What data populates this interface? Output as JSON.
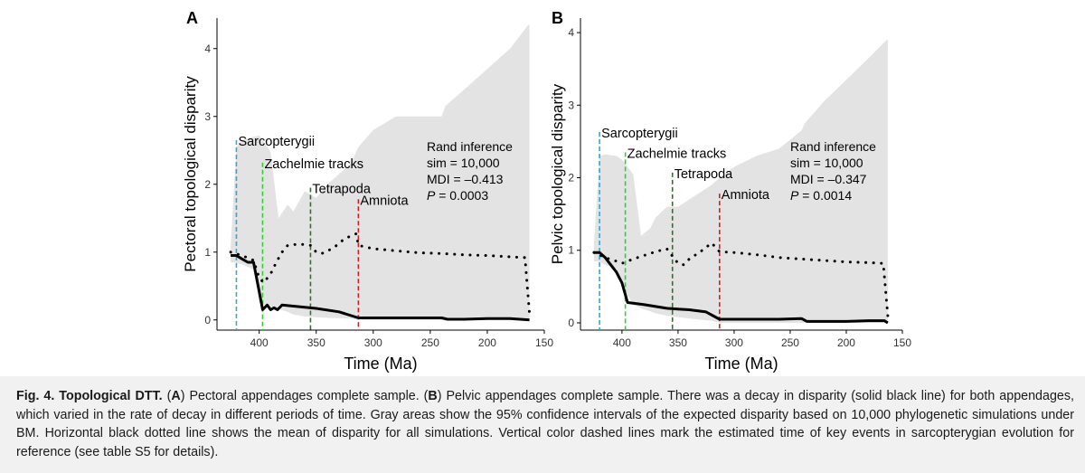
{
  "chart_data": [
    {
      "type": "line",
      "panel_label": "A",
      "ylabel": "Pectoral topological disparity",
      "xlabel": "Time (Ma)",
      "xlim": [
        437,
        150
      ],
      "ylim": [
        -0.15,
        4.45
      ],
      "x_ticks": [
        400,
        350,
        300,
        250,
        200,
        150
      ],
      "y_ticks": [
        0,
        1,
        2,
        3,
        4
      ],
      "ci_band": {
        "x": [
          425,
          420,
          415,
          405,
          400,
          390,
          383,
          375,
          370,
          360,
          350,
          340,
          320,
          313,
          300,
          280,
          260,
          240,
          237,
          220,
          200,
          180,
          164,
          163
        ],
        "upper": [
          1.08,
          2.55,
          2.65,
          2.7,
          2.72,
          2.48,
          1.5,
          1.7,
          1.6,
          1.9,
          1.8,
          2.0,
          2.3,
          2.55,
          2.8,
          3.0,
          3.0,
          3.0,
          3.15,
          3.4,
          3.7,
          4.0,
          4.35,
          4.35
        ],
        "lower": [
          0.85,
          0.84,
          0.82,
          0.74,
          0.25,
          0.19,
          0.16,
          0.12,
          0.08,
          0.05,
          0.04,
          0.03,
          0.02,
          0.0,
          0.0,
          0.0,
          0.0,
          0.0,
          0.0,
          0.0,
          0.0,
          0.0,
          0.0,
          0.0
        ]
      },
      "series": [
        {
          "name": "Observed disparity",
          "style": "solid",
          "x": [
            425,
            420,
            415,
            410,
            405,
            400,
            397,
            393,
            390,
            387,
            384,
            380,
            350,
            330,
            313,
            300,
            280,
            260,
            240,
            235,
            220,
            200,
            180,
            163
          ],
          "y": [
            0.95,
            0.95,
            0.9,
            0.85,
            0.85,
            0.42,
            0.15,
            0.22,
            0.15,
            0.18,
            0.15,
            0.22,
            0.17,
            0.12,
            0.03,
            0.03,
            0.03,
            0.03,
            0.03,
            0.01,
            0.01,
            0.02,
            0.02,
            0.0
          ]
        },
        {
          "name": "Mean simulated disparity",
          "style": "dotted",
          "x": [
            425,
            415,
            405,
            400,
            396,
            390,
            385,
            380,
            375,
            365,
            355,
            350,
            345,
            335,
            325,
            315,
            313,
            300,
            280,
            260,
            240,
            220,
            200,
            180,
            167,
            163
          ],
          "y": [
            1.0,
            0.95,
            0.88,
            0.62,
            0.55,
            0.68,
            0.85,
            1.0,
            1.1,
            1.12,
            1.1,
            1.0,
            0.98,
            1.06,
            1.2,
            1.27,
            1.1,
            1.05,
            1.02,
            0.99,
            0.98,
            0.96,
            0.95,
            0.93,
            0.92,
            0.1
          ]
        }
      ],
      "events": [
        {
          "label": "Sarcopterygii",
          "x": 420,
          "ymax": 2.65,
          "color": "#2aa8e0"
        },
        {
          "label": "Zachelmie tracks",
          "x": 397,
          "ymax": 2.32,
          "color": "#33cc33"
        },
        {
          "label": "Tetrapoda",
          "x": 355,
          "ymax": 1.95,
          "color": "#1e7d1e"
        },
        {
          "label": "Amniota",
          "x": 313,
          "ymax": 1.78,
          "color": "#cc1f1f"
        }
      ],
      "annotation": {
        "line1": "Rand inference",
        "line2": "sim = 10,000",
        "line3": "MDI = –0.413",
        "p_label": "P",
        "p_value": " = 0.0003"
      }
    },
    {
      "type": "line",
      "panel_label": "B",
      "ylabel": "Pelvic topological disparity",
      "xlabel": "Time (Ma)",
      "xlim": [
        437,
        150
      ],
      "ylim": [
        -0.1,
        4.2
      ],
      "x_ticks": [
        400,
        350,
        300,
        250,
        200,
        150
      ],
      "y_ticks": [
        0,
        1,
        2,
        3,
        4
      ],
      "ci_band": {
        "x": [
          425,
          420,
          415,
          405,
          400,
          390,
          383,
          375,
          370,
          360,
          350,
          340,
          320,
          313,
          300,
          280,
          260,
          240,
          237,
          220,
          200,
          180,
          164,
          163
        ],
        "upper": [
          1.08,
          2.3,
          2.32,
          2.3,
          2.25,
          2.05,
          1.2,
          1.3,
          1.45,
          1.6,
          1.6,
          1.7,
          1.9,
          2.0,
          2.15,
          2.3,
          2.4,
          2.65,
          2.75,
          3.05,
          3.35,
          3.65,
          3.9,
          3.9
        ],
        "lower": [
          0.85,
          0.84,
          0.8,
          0.74,
          0.5,
          0.25,
          0.2,
          0.16,
          0.13,
          0.1,
          0.08,
          0.06,
          0.03,
          0.0,
          0.0,
          0.0,
          0.0,
          0.0,
          0.0,
          0.0,
          0.0,
          0.0,
          0.0,
          0.0
        ]
      },
      "series": [
        {
          "name": "Observed disparity",
          "style": "solid",
          "x": [
            425,
            420,
            415,
            410,
            405,
            400,
            395,
            390,
            380,
            360,
            350,
            340,
            325,
            313,
            300,
            280,
            260,
            240,
            235,
            220,
            200,
            180,
            166,
            163
          ],
          "y": [
            0.97,
            0.97,
            0.9,
            0.8,
            0.7,
            0.55,
            0.28,
            0.27,
            0.25,
            0.2,
            0.19,
            0.18,
            0.15,
            0.05,
            0.05,
            0.05,
            0.05,
            0.06,
            0.02,
            0.02,
            0.02,
            0.03,
            0.03,
            0.0
          ]
        },
        {
          "name": "Mean simulated disparity",
          "style": "dotted",
          "x": [
            425,
            415,
            405,
            400,
            395,
            390,
            380,
            370,
            360,
            350,
            345,
            340,
            330,
            320,
            313,
            300,
            280,
            260,
            240,
            220,
            200,
            180,
            167,
            163
          ],
          "y": [
            0.97,
            0.9,
            0.85,
            0.82,
            0.85,
            0.88,
            0.93,
            0.98,
            1.02,
            0.82,
            0.8,
            0.88,
            0.98,
            1.1,
            0.98,
            0.97,
            0.94,
            0.9,
            0.88,
            0.86,
            0.84,
            0.83,
            0.82,
            0.1
          ]
        }
      ],
      "events": [
        {
          "label": "Sarcopterygii",
          "x": 420,
          "ymax": 2.63,
          "color": "#2aa8e0"
        },
        {
          "label": "Zachelmie tracks",
          "x": 397,
          "ymax": 2.35,
          "color": "#33cc33"
        },
        {
          "label": "Tetrapoda",
          "x": 355,
          "ymax": 2.07,
          "color": "#1e7d1e"
        },
        {
          "label": "Amniota",
          "x": 313,
          "ymax": 1.78,
          "color": "#cc1f1f"
        }
      ],
      "annotation": {
        "line1": "Rand inference",
        "line2": "sim = 10,000",
        "line3": "MDI = –0.347",
        "p_label": "P",
        "p_value": " = 0.0014"
      }
    }
  ],
  "caption": {
    "label": "Fig. 4. Topological DTT.",
    "a_open": " (",
    "a_label": "A",
    "a_text": ") Pectoral appendages complete sample. (",
    "b_label": "B",
    "b_text": ") Pelvic appendages complete sample. There was a decay in disparity (solid black line) for both appendages, which varied in the rate of decay in different periods of time. Gray areas show the 95% confidence intervals of the expected disparity based on 10,000 phylogenetic simulations under BM. Horizontal black dotted line shows the mean of disparity for all simulations. Vertical color dashed lines mark the estimated time of key events in sarcopterygian evolution for reference (see table S5 for details)."
  },
  "colors": {
    "ci_band": "#e3e3e3",
    "line": "#000000",
    "axis": "#000000",
    "tick_text": "#333333",
    "caption_bg": "#f1f1f2"
  }
}
